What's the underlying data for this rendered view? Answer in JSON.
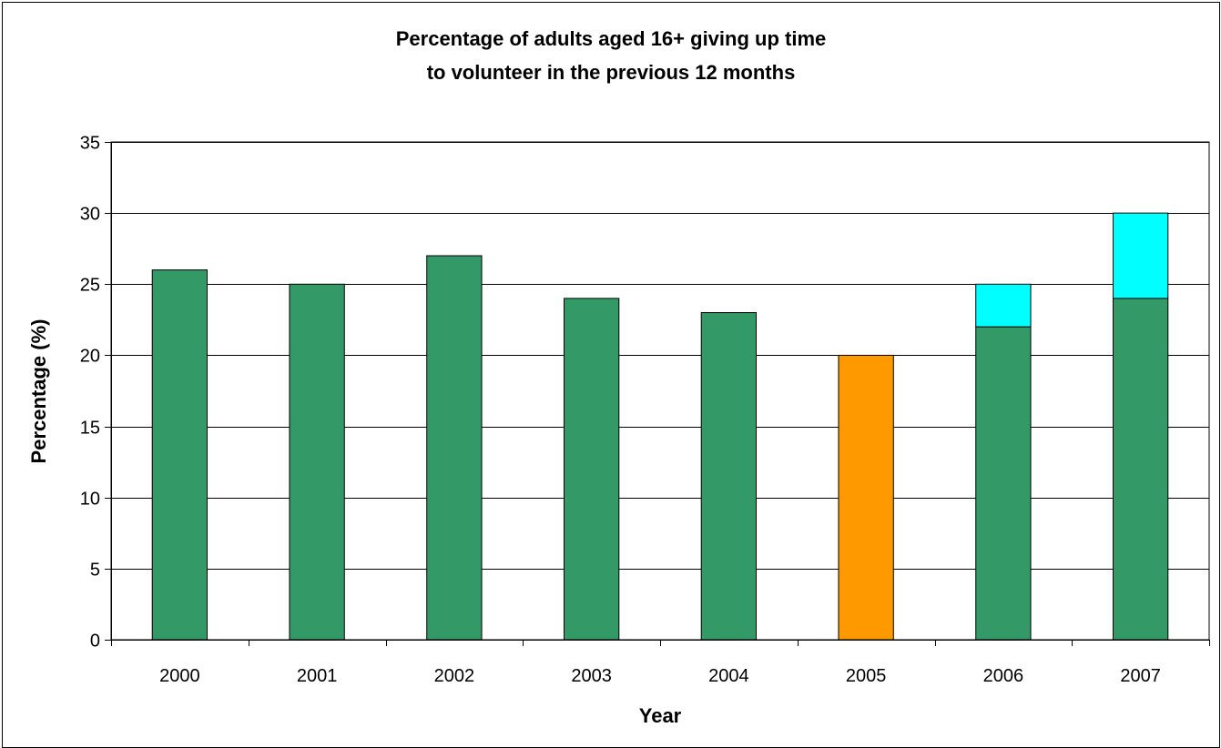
{
  "chart_data": {
    "type": "bar",
    "stacked": true,
    "title": [
      "Percentage of adults aged 16+ giving up time",
      "to volunteer in the previous 12 months"
    ],
    "xlabel": "Year",
    "ylabel": "Percentage (%)",
    "categories": [
      "2000",
      "2001",
      "2002",
      "2003",
      "2004",
      "2005",
      "2006",
      "2007"
    ],
    "series": [
      {
        "values": [
          26,
          25,
          27,
          24,
          23,
          20,
          22,
          24
        ],
        "point_colors": [
          "#339966",
          "#339966",
          "#339966",
          "#339966",
          "#339966",
          "#FF9900",
          "#339966",
          "#339966"
        ]
      },
      {
        "values": [
          0,
          0,
          0,
          0,
          0,
          0,
          3,
          6
        ],
        "color": "#00FFFF"
      }
    ],
    "ylim": [
      0,
      35
    ],
    "yticks": [
      0,
      5,
      10,
      15,
      20,
      25,
      30,
      35
    ],
    "grid": true,
    "legend": "none"
  }
}
